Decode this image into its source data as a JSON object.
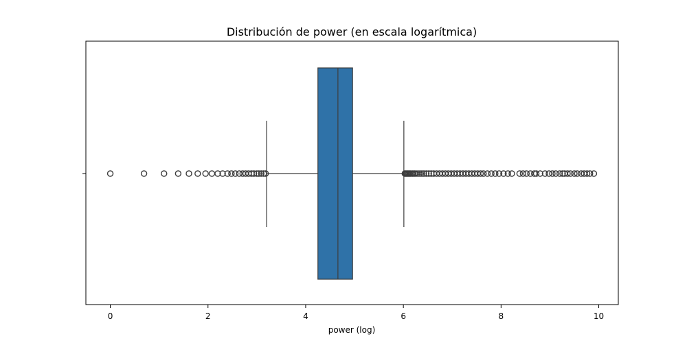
{
  "chart_data": {
    "type": "boxplot",
    "title": "Distribución de power (en escala logarítmica)",
    "xlabel": "power (log)",
    "ylabel": "",
    "xlim": [
      -0.5,
      10.4
    ],
    "xticks": [
      0,
      2,
      4,
      6,
      8,
      10
    ],
    "xtick_labels": [
      "0",
      "2",
      "4",
      "6",
      "8",
      "10"
    ],
    "grid": false,
    "colors": {
      "box_fill": "#2f72a8",
      "line": "#3d3d3d",
      "outlier": "#3d3d3d"
    },
    "box": {
      "whisker_low": 3.2,
      "q1": 4.25,
      "median": 4.66,
      "q3": 4.96,
      "whisker_high": 6.01
    },
    "outliers": [
      0.0,
      0.69,
      1.1,
      1.39,
      1.61,
      1.79,
      1.95,
      2.08,
      2.2,
      2.3,
      2.4,
      2.48,
      2.56,
      2.64,
      2.71,
      2.77,
      2.83,
      2.89,
      2.94,
      3.0,
      3.04,
      3.09,
      3.14,
      3.18,
      6.03,
      6.05,
      6.07,
      6.09,
      6.11,
      6.13,
      6.15,
      6.18,
      6.2,
      6.23,
      6.26,
      6.3,
      6.34,
      6.38,
      6.42,
      6.47,
      6.52,
      6.57,
      6.62,
      6.68,
      6.74,
      6.8,
      6.86,
      6.92,
      6.98,
      7.04,
      7.1,
      7.16,
      7.22,
      7.28,
      7.34,
      7.4,
      7.46,
      7.52,
      7.58,
      7.64,
      7.72,
      7.8,
      7.88,
      7.96,
      8.05,
      8.14,
      8.22,
      8.38,
      8.45,
      8.52,
      8.6,
      8.68,
      8.72,
      8.8,
      8.9,
      8.98,
      9.05,
      9.12,
      9.2,
      9.26,
      9.3,
      9.36,
      9.42,
      9.5,
      9.56,
      9.64,
      9.7,
      9.76,
      9.82,
      9.9
    ]
  }
}
